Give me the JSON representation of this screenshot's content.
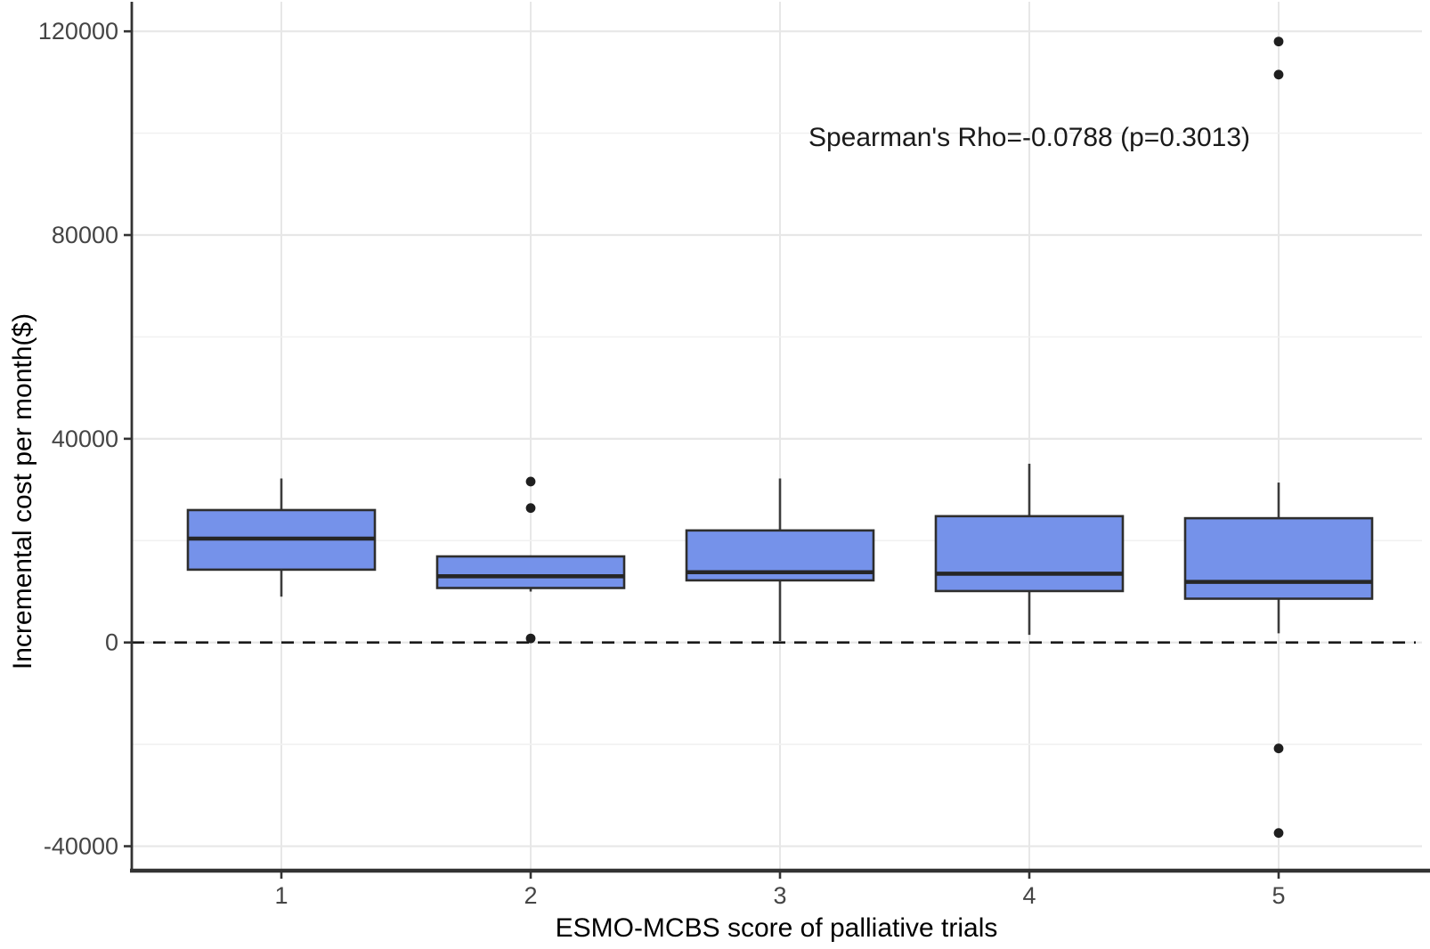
{
  "figure": {
    "background": "#FFFFFF"
  },
  "chart_data": {
    "type": "boxplot",
    "title": "",
    "xlabel": "ESMO-MCBS score of palliative trials",
    "ylabel": "Incremental cost per month($)",
    "categories": [
      "1",
      "2",
      "3",
      "4",
      "5"
    ],
    "ylim": [
      -44800,
      125800
    ],
    "yticks_major": [
      -40000,
      0,
      40000,
      80000,
      120000
    ],
    "ytick_labels": [
      "-40000",
      "0",
      "40000",
      "80000",
      "120000"
    ],
    "yticks_minor": [
      -20000,
      20000,
      60000,
      100000
    ],
    "grid": true,
    "legend": "none",
    "reference_line": {
      "y": 0,
      "style": "dashed"
    },
    "series": [
      {
        "category": "1",
        "whisker_low": 9000,
        "q1": 14300,
        "median": 20400,
        "q3": 26000,
        "whisker_high": 32200,
        "outliers": []
      },
      {
        "category": "2",
        "whisker_low": 10000,
        "q1": 10700,
        "median": 13000,
        "q3": 16900,
        "whisker_high": 16900,
        "outliers": [
          31600,
          26400,
          800
        ]
      },
      {
        "category": "3",
        "whisker_low": 300,
        "q1": 12200,
        "median": 13800,
        "q3": 22000,
        "whisker_high": 32200,
        "outliers": []
      },
      {
        "category": "4",
        "whisker_low": 1500,
        "q1": 10100,
        "median": 13500,
        "q3": 24800,
        "whisker_high": 35100,
        "outliers": []
      },
      {
        "category": "5",
        "whisker_low": 1800,
        "q1": 8600,
        "median": 11900,
        "q3": 24400,
        "whisker_high": 31400,
        "outliers": [
          118000,
          111500,
          -20800,
          -37400
        ]
      }
    ],
    "annotation": {
      "text": "Spearman's Rho=-0.0788 (p=0.3013)",
      "x_category": "4",
      "y": 99000
    },
    "colors": {
      "box_fill": "#7592EA",
      "box_border": "#2E2E2E",
      "median_line": "#262626",
      "whisker": "#3C3C3C",
      "outlier": "#1F1F1F",
      "axis_line": "#333333",
      "tick_label": "#454545",
      "grid_major": "#E7E7E7",
      "grid_minor": "#F1F1F1",
      "reference_line": "#1A1A1A",
      "background": "#FFFFFF"
    }
  }
}
